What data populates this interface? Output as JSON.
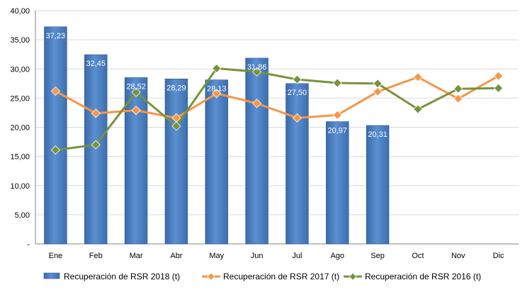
{
  "chart_data": {
    "type": "bar",
    "categories": [
      "Ene",
      "Feb",
      "Mar",
      "Abr",
      "May",
      "Jun",
      "Jul",
      "Ago",
      "Sep",
      "Oct",
      "Nov",
      "Dic"
    ],
    "ylim": [
      0,
      40
    ],
    "ytick_labels": [
      "-",
      "5,00",
      "10,00",
      "15,00",
      "20,00",
      "25,00",
      "30,00",
      "35,00",
      "40,00"
    ],
    "series": [
      {
        "name": "Recuperación de RSR 2018 (t)",
        "kind": "bar",
        "color": "#4f81bd",
        "values": [
          37.23,
          32.45,
          28.52,
          28.29,
          28.13,
          31.86,
          27.5,
          20.97,
          20.31,
          null,
          null,
          null
        ],
        "labels": [
          "37,23",
          "32,45",
          "28,52",
          "28,29",
          "28,13",
          "31,86",
          "27,50",
          "20,97",
          "20,31",
          "",
          "",
          ""
        ]
      },
      {
        "name": "Recuperación de RSR 2017 (t)",
        "kind": "line",
        "color": "#f79646",
        "values": [
          26.2,
          22.4,
          22.9,
          21.6,
          25.8,
          24.1,
          21.6,
          22.1,
          26.1,
          28.6,
          24.9,
          28.8
        ]
      },
      {
        "name": "Recuperación de RSR 2016 (t)",
        "kind": "line",
        "color": "#77933c",
        "values": [
          16.1,
          17.0,
          26.0,
          20.2,
          30.1,
          29.5,
          28.2,
          27.6,
          27.5,
          23.1,
          26.6,
          26.7
        ]
      }
    ],
    "grid": true,
    "legend_position": "bottom"
  }
}
